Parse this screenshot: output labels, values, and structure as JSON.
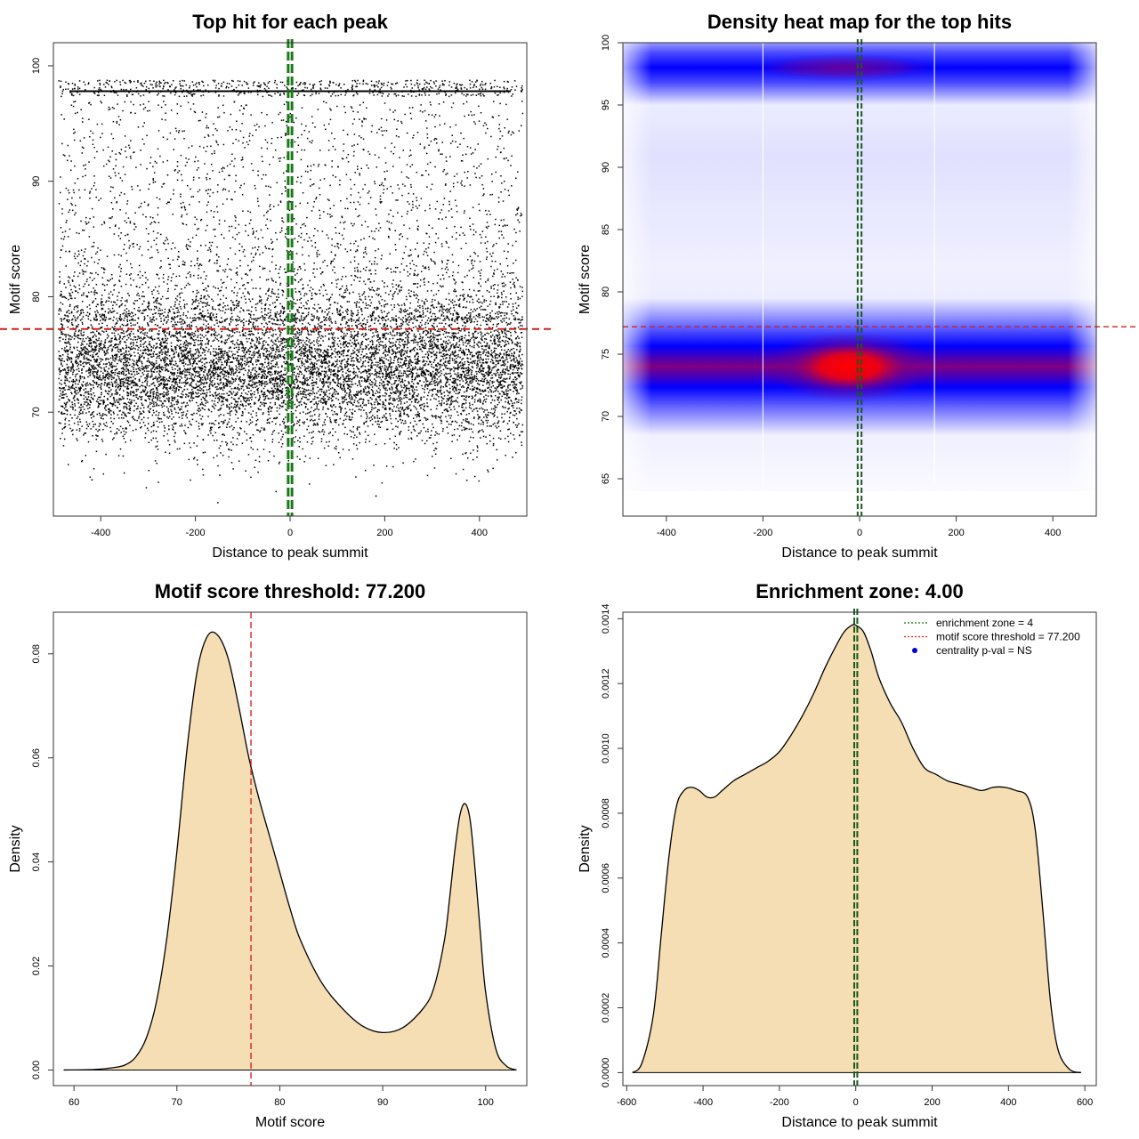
{
  "chart_data": [
    {
      "type": "scatter",
      "title": "Top hit for each peak",
      "xlabel": "Distance to peak summit",
      "ylabel": "Motif score",
      "xlim": [
        -500,
        500
      ],
      "ylim": [
        61,
        102
      ],
      "xticks": [
        "-400",
        "-200",
        "0",
        "200",
        "400"
      ],
      "yticks": [
        "70",
        "80",
        "90",
        "100"
      ],
      "point_color": "#000000",
      "vlines": {
        "x": [
          -4,
          4
        ],
        "color": "#1a7a1a",
        "style": "dashed"
      },
      "hline": {
        "y": 77.2,
        "color": "#cc2222",
        "style": "dashed"
      },
      "points_summary": "dense cloud centered near score 74 (range ~64–82), sparse hits 80–97, horizontal band at 97.8–98.8",
      "points_sample": [
        [
          -470,
          73.5
        ],
        [
          -430,
          71.2
        ],
        [
          -410,
          75.8
        ],
        [
          -380,
          68.4
        ],
        [
          -350,
          74.1
        ],
        [
          -320,
          72.9
        ],
        [
          -300,
          79.6
        ],
        [
          -270,
          70.8
        ],
        [
          -240,
          76.3
        ],
        [
          -210,
          73.0
        ],
        [
          -190,
          84.5
        ],
        [
          -160,
          71.7
        ],
        [
          -130,
          74.9
        ],
        [
          -100,
          77.8
        ],
        [
          -80,
          72.2
        ],
        [
          -50,
          75.4
        ],
        [
          -20,
          73.6
        ],
        [
          0,
          74.8
        ],
        [
          15,
          76.9
        ],
        [
          40,
          71.5
        ],
        [
          70,
          78.3
        ],
        [
          100,
          73.2
        ],
        [
          130,
          69.9
        ],
        [
          160,
          75.1
        ],
        [
          190,
          88.2
        ],
        [
          220,
          72.6
        ],
        [
          250,
          74.4
        ],
        [
          280,
          70.3
        ],
        [
          310,
          76.7
        ],
        [
          340,
          73.8
        ],
        [
          370,
          92.4
        ],
        [
          400,
          71.9
        ],
        [
          430,
          75.6
        ],
        [
          460,
          72.4
        ],
        [
          480,
          86.7
        ],
        [
          -440,
          95.2
        ],
        [
          -260,
          90.6
        ],
        [
          120,
          94.1
        ],
        [
          330,
          82.9
        ],
        [
          -150,
          64.6
        ],
        [
          180,
          62.8
        ],
        [
          -420,
          64.2
        ],
        [
          -380,
          97.8
        ],
        [
          -120,
          98.0
        ],
        [
          90,
          98.6
        ],
        [
          260,
          97.8
        ],
        [
          450,
          98.2
        ]
      ]
    },
    {
      "type": "heatmap",
      "title": "Density heat map for the top hits",
      "xlabel": "Distance to peak summit",
      "ylabel": "Motif score",
      "xlim": [
        -490,
        490
      ],
      "ylim": [
        62,
        100
      ],
      "xticks": [
        "-400",
        "-200",
        "0",
        "200",
        "400"
      ],
      "yticks": [
        "65",
        "70",
        "75",
        "80",
        "85",
        "90",
        "95",
        "100"
      ],
      "colormap": [
        "#ffffff",
        "#0000ff",
        "#800080",
        "#ff0000"
      ],
      "vlines": {
        "x": [
          -4,
          4
        ],
        "color": "#1a5a1a",
        "style": "dashed"
      },
      "hline": {
        "y": 77.2,
        "color": "#cc2222",
        "style": "dashed"
      },
      "white_vlines": [
        -200,
        155
      ],
      "density_bands": [
        {
          "y_center": 74,
          "intensity": 1.0,
          "x_peak": -20
        },
        {
          "y_center": 98,
          "intensity": 0.55,
          "x_peak": -30
        }
      ]
    },
    {
      "type": "area",
      "title": "Motif score threshold: 77.200",
      "xlabel": "Motif score",
      "ylabel": "Density",
      "xlim": [
        58,
        104
      ],
      "ylim": [
        -0.003,
        0.088
      ],
      "xticks": [
        "60",
        "70",
        "80",
        "90",
        "100"
      ],
      "yticks": [
        "0.00",
        "0.02",
        "0.04",
        "0.06",
        "0.08"
      ],
      "fill": "#f5deb3",
      "vline": {
        "x": 77.2,
        "color": "#dd2222",
        "style": "dashed"
      },
      "x": [
        59,
        62,
        64,
        65,
        66,
        67,
        68,
        69,
        70,
        71,
        72,
        73,
        74,
        75,
        76,
        77,
        78,
        79,
        80,
        81,
        82,
        84,
        86,
        88,
        90,
        92,
        94,
        95,
        96,
        96.5,
        97,
        97.5,
        98,
        98.5,
        99,
        99.5,
        100,
        101,
        102,
        103
      ],
      "y": [
        0.0,
        0.0001,
        0.0005,
        0.001,
        0.0025,
        0.006,
        0.013,
        0.025,
        0.042,
        0.062,
        0.077,
        0.0835,
        0.0835,
        0.079,
        0.07,
        0.06,
        0.052,
        0.045,
        0.038,
        0.031,
        0.025,
        0.017,
        0.012,
        0.0085,
        0.0072,
        0.0082,
        0.012,
        0.016,
        0.025,
        0.033,
        0.042,
        0.049,
        0.0512,
        0.048,
        0.038,
        0.026,
        0.015,
        0.004,
        0.0008,
        0.0
      ]
    },
    {
      "type": "area",
      "title": "Enrichment zone: 4.00",
      "xlabel": "Distance to peak summit",
      "ylabel": "Density",
      "xlim": [
        -610,
        630
      ],
      "ylim": [
        -4e-05,
        0.00142
      ],
      "xticks": [
        "-600",
        "-400",
        "-200",
        "0",
        "200",
        "400",
        "600"
      ],
      "yticks": [
        "0.0000",
        "0.0002",
        "0.0004",
        "0.0006",
        "0.0008",
        "0.0010",
        "0.0012",
        "0.0014"
      ],
      "fill": "#f5deb3",
      "vlines": {
        "x": [
          -4,
          4
        ],
        "color": "#1a5a1a",
        "style": "dashed"
      },
      "x": [
        -585,
        -560,
        -530,
        -510,
        -490,
        -470,
        -450,
        -430,
        -410,
        -390,
        -370,
        -350,
        -320,
        -290,
        -260,
        -230,
        -200,
        -170,
        -140,
        -110,
        -80,
        -50,
        -30,
        -10,
        0,
        20,
        40,
        60,
        90,
        120,
        150,
        180,
        210,
        240,
        270,
        300,
        330,
        360,
        390,
        420,
        450,
        470,
        490,
        510,
        530,
        560,
        590
      ],
      "y": [
        0.0,
        3e-05,
        0.00018,
        0.00042,
        0.00066,
        0.00082,
        0.00087,
        0.00088,
        0.00087,
        0.00085,
        0.00085,
        0.00087,
        0.0009,
        0.00092,
        0.00094,
        0.00096,
        0.00099,
        0.00104,
        0.0011,
        0.00117,
        0.00125,
        0.00132,
        0.00136,
        0.00138,
        0.00138,
        0.00136,
        0.0013,
        0.00122,
        0.00114,
        0.00108,
        0.001,
        0.00094,
        0.00092,
        0.0009,
        0.00089,
        0.00088,
        0.00087,
        0.00088,
        0.00088,
        0.00087,
        0.00085,
        0.00075,
        0.0005,
        0.00022,
        7e-05,
        1e-05,
        0.0
      ],
      "legend": {
        "placement": "top-right",
        "entries": [
          {
            "label": "enrichment zone = 4",
            "color": "#1a7a1a",
            "symbol": "dotted-line"
          },
          {
            "label": "motif score threshold = 77.200",
            "color": "#dd2222",
            "symbol": "dotted-line"
          },
          {
            "label": "centrality p-val = NS",
            "color": "#0000cc",
            "symbol": "dot"
          }
        ]
      }
    }
  ]
}
